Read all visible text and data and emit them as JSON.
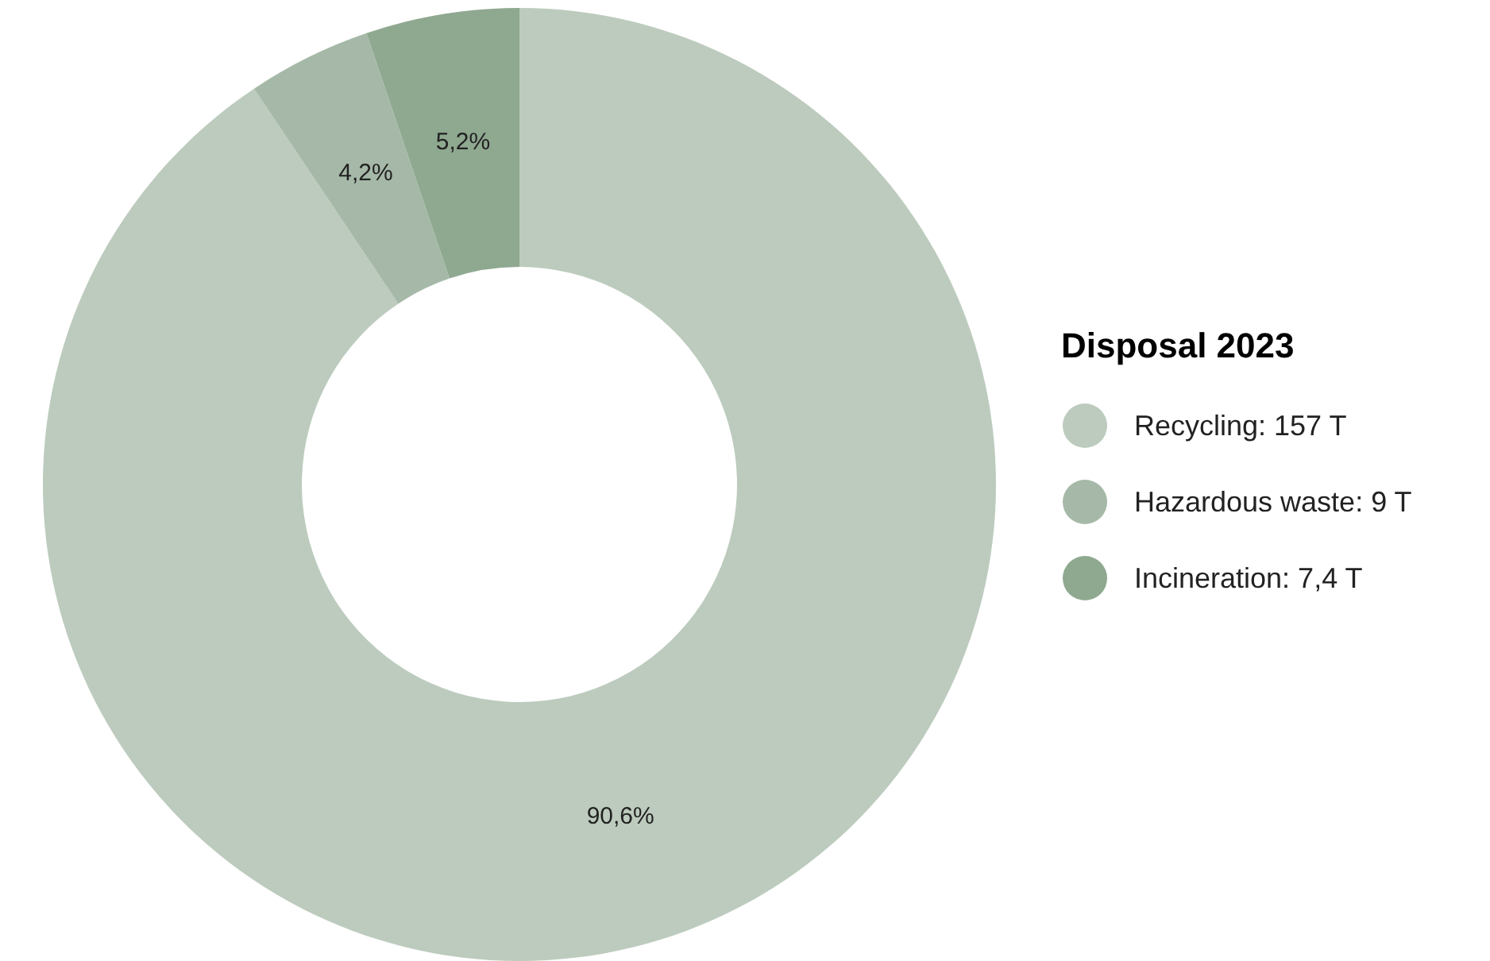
{
  "chart_data": {
    "type": "donut",
    "legend_title": "Disposal 2023",
    "categories": [
      "Recycling: 157 T",
      "Hazardous waste: 9 T",
      "Incineration: 7,4 T"
    ],
    "values": [
      90.6,
      4.2,
      5.2
    ],
    "value_labels": [
      "90,6%",
      "4,2%",
      "5,2%"
    ],
    "colors": [
      "#bccbbd",
      "#a6b9a8",
      "#8fa890"
    ],
    "legend": "right"
  }
}
